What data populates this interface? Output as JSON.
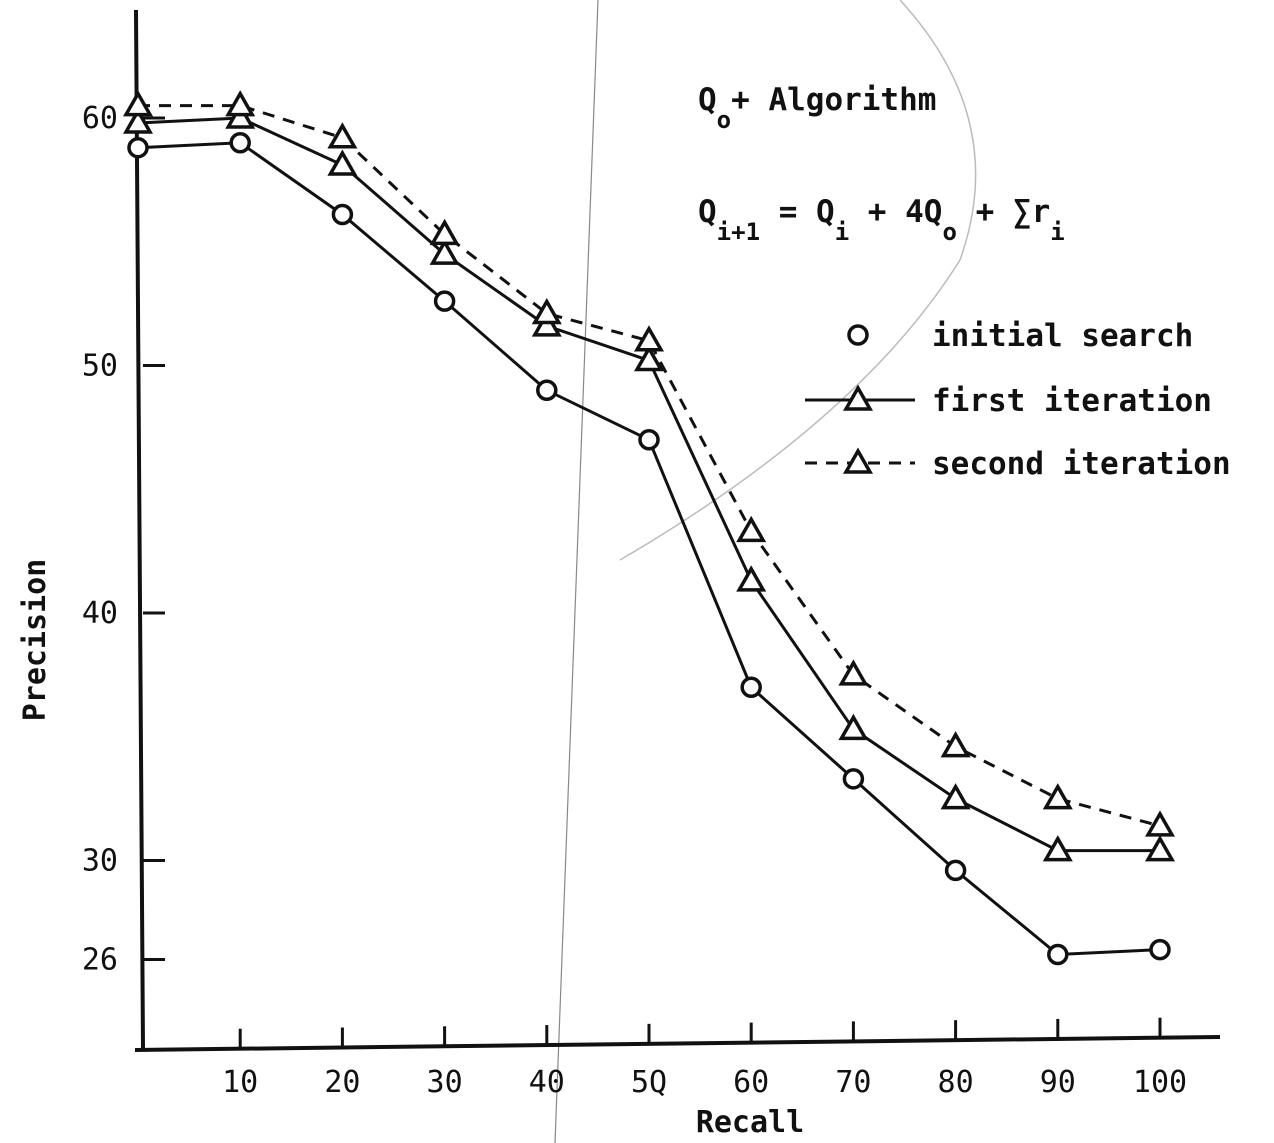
{
  "chart_data": {
    "type": "line",
    "xlabel": "Recall",
    "ylabel": "Precision",
    "xlim": [
      0,
      105
    ],
    "ylim": [
      24.6,
      64
    ],
    "x_ticks": [
      10,
      20,
      30,
      40,
      50,
      60,
      70,
      80,
      90,
      100
    ],
    "x_tick_labels": [
      "10",
      "20",
      "30",
      "40",
      "5Q",
      "60",
      "70",
      "80",
      "90",
      "100"
    ],
    "y_ticks": [
      26,
      30,
      40,
      50,
      60
    ],
    "y_tick_labels": [
      "26",
      "30",
      "40",
      "50",
      "60"
    ],
    "grid": false,
    "legend_position": "top-right",
    "annotation": {
      "title_main": "Q",
      "title_sub": "o",
      "title_rest": "+ Algorithm",
      "formula_parts": [
        {
          "text": "Q",
          "sub": false
        },
        {
          "text": "i+1",
          "sub": true
        },
        {
          "text": " = Q",
          "sub": false
        },
        {
          "text": "i",
          "sub": true
        },
        {
          "text": " + 4Q",
          "sub": false
        },
        {
          "text": "o",
          "sub": true
        },
        {
          "text": " + ∑r",
          "sub": false
        },
        {
          "text": "i",
          "sub": true
        }
      ]
    },
    "x": [
      0,
      10,
      20,
      30,
      40,
      50,
      60,
      70,
      80,
      90,
      100
    ],
    "series": [
      {
        "name": "initial search",
        "marker": "circle",
        "line": "solid",
        "color": "#111111",
        "values": [
          58.8,
          59.0,
          56.1,
          52.6,
          49.0,
          47.0,
          37.0,
          33.3,
          29.6,
          26.2,
          26.4
        ]
      },
      {
        "name": "first iteration",
        "marker": "triangle",
        "line": "solid",
        "color": "#111111",
        "values": [
          59.8,
          60.0,
          58.1,
          54.5,
          51.6,
          50.2,
          41.3,
          35.3,
          32.5,
          30.4,
          30.4
        ]
      },
      {
        "name": "second iteration",
        "marker": "triangle",
        "line": "dashed",
        "color": "#111111",
        "values": [
          60.5,
          60.5,
          59.2,
          55.3,
          52.1,
          51.0,
          43.3,
          37.5,
          34.6,
          32.5,
          31.4
        ]
      }
    ]
  }
}
